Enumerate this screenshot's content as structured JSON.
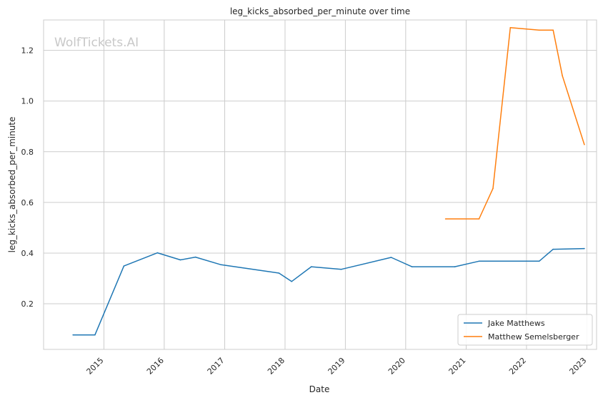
{
  "chart_data": {
    "type": "line",
    "title": "leg_kicks_absorbed_per_minute over time",
    "xlabel": "Date",
    "ylabel": "leg_kicks_absorbed_per_minute",
    "watermark": "WolfTickets.AI",
    "x_axis": {
      "type": "date",
      "xlim": [
        "2014-01-01",
        "2023-03-01"
      ],
      "ticks": [
        "2015",
        "2016",
        "2017",
        "2018",
        "2019",
        "2020",
        "2021",
        "2022",
        "2023"
      ]
    },
    "y_axis": {
      "ylim": [
        0.02,
        1.32
      ],
      "ticks": [
        "0.2",
        "0.4",
        "0.6",
        "0.8",
        "1.0",
        "1.2"
      ]
    },
    "grid": true,
    "legend_position": "bottom-right",
    "series": [
      {
        "name": "Jake Matthews",
        "color": "#1f77b4",
        "points": [
          [
            "2014-06-28",
            0.077
          ],
          [
            "2014-11-08",
            0.077
          ],
          [
            "2015-05-02",
            0.349
          ],
          [
            "2015-11-21",
            0.401
          ],
          [
            "2016-04-08",
            0.373
          ],
          [
            "2016-07-08",
            0.384
          ],
          [
            "2016-12-10",
            0.354
          ],
          [
            "2017-11-25",
            0.321
          ],
          [
            "2018-02-10",
            0.288
          ],
          [
            "2018-06-09",
            0.346
          ],
          [
            "2018-12-08",
            0.336
          ],
          [
            "2019-10-05",
            0.383
          ],
          [
            "2020-02-08",
            0.346
          ],
          [
            "2020-10-24",
            0.346
          ],
          [
            "2021-03-20",
            0.368
          ],
          [
            "2022-03-19",
            0.368
          ],
          [
            "2022-06-11",
            0.415
          ],
          [
            "2022-12-17",
            0.418
          ]
        ]
      },
      {
        "name": "Matthew Semelsberger",
        "color": "#ff7f0e",
        "points": [
          [
            "2020-08-29",
            0.535
          ],
          [
            "2021-03-20",
            0.535
          ],
          [
            "2021-06-12",
            0.655
          ],
          [
            "2021-09-25",
            1.29
          ],
          [
            "2022-03-19",
            1.28
          ],
          [
            "2022-06-11",
            1.28
          ],
          [
            "2022-08-06",
            1.1
          ],
          [
            "2022-12-17",
            0.828
          ]
        ]
      }
    ]
  }
}
